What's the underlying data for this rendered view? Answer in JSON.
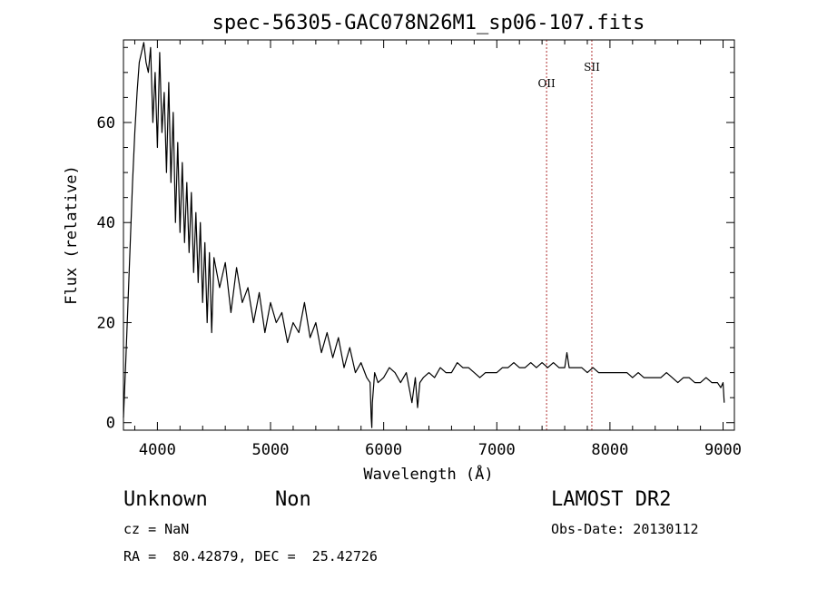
{
  "chart_data": {
    "type": "line",
    "title": "spec-56305-GAC078N26M1_sp06-107.fits",
    "xlabel": "Wavelength (Å)",
    "ylabel": "Flux (relative)",
    "xlim": [
      3700,
      9100
    ],
    "ylim": [
      -1.5,
      76.5
    ],
    "xticks": [
      4000,
      5000,
      6000,
      7000,
      8000,
      9000
    ],
    "yticks": [
      0,
      20,
      40,
      60
    ],
    "grid": false,
    "line_color": "#000000",
    "marker_color": "#b03030",
    "series": [
      {
        "x": [
          3700,
          3720,
          3740,
          3760,
          3780,
          3800,
          3820,
          3840,
          3860,
          3880,
          3900,
          3920,
          3940,
          3960,
          3980,
          4000,
          4020,
          4040,
          4060,
          4080,
          4100,
          4120,
          4140,
          4160,
          4180,
          4200,
          4220,
          4240,
          4260,
          4280,
          4300,
          4320,
          4340,
          4360,
          4380,
          4400,
          4420,
          4440,
          4460,
          4480,
          4500,
          4550,
          4600,
          4650,
          4700,
          4750,
          4800,
          4850,
          4900,
          4950,
          5000,
          5050,
          5100,
          5150,
          5200,
          5250,
          5300,
          5350,
          5400,
          5450,
          5500,
          5550,
          5600,
          5650,
          5700,
          5750,
          5800,
          5850,
          5880,
          5890,
          5895,
          5900,
          5920,
          5950,
          6000,
          6050,
          6100,
          6150,
          6200,
          6250,
          6280,
          6300,
          6320,
          6350,
          6400,
          6450,
          6500,
          6550,
          6600,
          6650,
          6700,
          6750,
          6800,
          6850,
          6900,
          6950,
          7000,
          7050,
          7100,
          7150,
          7200,
          7250,
          7300,
          7350,
          7400,
          7450,
          7500,
          7550,
          7600,
          7620,
          7640,
          7700,
          7750,
          7800,
          7850,
          7900,
          7950,
          8000,
          8050,
          8100,
          8150,
          8200,
          8250,
          8300,
          8350,
          8400,
          8450,
          8500,
          8550,
          8600,
          8650,
          8700,
          8750,
          8800,
          8850,
          8900,
          8950,
          8980,
          9000,
          9010
        ],
        "y": [
          1,
          12,
          24,
          36,
          48,
          58,
          66,
          72,
          74,
          76,
          72,
          70,
          75,
          60,
          70,
          55,
          74,
          58,
          66,
          50,
          68,
          48,
          62,
          40,
          56,
          38,
          52,
          36,
          48,
          34,
          46,
          30,
          42,
          28,
          40,
          24,
          36,
          20,
          34,
          18,
          33,
          27,
          32,
          22,
          31,
          24,
          27,
          20,
          26,
          18,
          24,
          20,
          22,
          16,
          20,
          18,
          24,
          17,
          20,
          14,
          18,
          13,
          17,
          11,
          15,
          10,
          12,
          9,
          8,
          1,
          -1,
          4,
          10,
          8,
          9,
          11,
          10,
          8,
          10,
          4,
          9,
          3,
          8,
          9,
          10,
          9,
          11,
          10,
          10,
          12,
          11,
          11,
          10,
          9,
          10,
          10,
          10,
          11,
          11,
          12,
          11,
          11,
          12,
          11,
          12,
          11,
          12,
          11,
          11,
          14,
          11,
          11,
          11,
          10,
          11,
          10,
          10,
          10,
          10,
          10,
          10,
          9,
          10,
          9,
          9,
          9,
          9,
          10,
          9,
          8,
          9,
          9,
          8,
          8,
          9,
          8,
          8,
          7,
          8,
          4
        ]
      }
    ],
    "markers": [
      {
        "label": "OII",
        "x": 7440
      },
      {
        "label": "SII",
        "x": 7840
      }
    ]
  },
  "info": {
    "class_label": "Unknown",
    "subclass_label": "Non",
    "survey": "LAMOST DR2",
    "cz": "cz = NaN",
    "obs_date": "Obs-Date: 20130112",
    "coords": "RA =  80.42879, DEC =  25.42726"
  }
}
